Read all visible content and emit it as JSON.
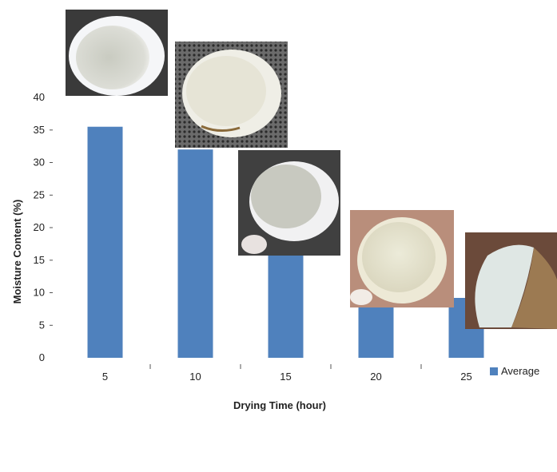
{
  "chart_data": {
    "type": "bar",
    "categories": [
      "5",
      "10",
      "15",
      "20",
      "25"
    ],
    "series": [
      {
        "name": "Average",
        "values": [
          35.5,
          32,
          20,
          12.5,
          9.2
        ]
      }
    ],
    "xlabel": "Drying Time (hour)",
    "ylabel": "Moisture Content (%)",
    "ylim": [
      0,
      40
    ],
    "yticks": [
      0,
      5,
      10,
      15,
      20,
      25,
      30,
      35,
      40
    ],
    "grid": false,
    "legend": "right",
    "bar_color": "#4f81bd",
    "images": [
      {
        "name": "coconut-photo-5h"
      },
      {
        "name": "coconut-photo-10h"
      },
      {
        "name": "coconut-photo-15h"
      },
      {
        "name": "coconut-photo-20h"
      },
      {
        "name": "coconut-photo-25h"
      }
    ]
  }
}
